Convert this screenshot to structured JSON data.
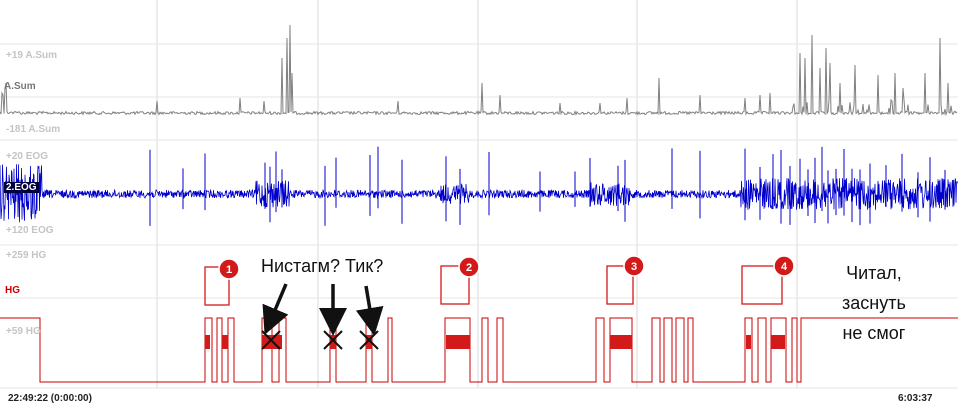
{
  "recording": {
    "start_time": "22:49:22 (0:00:00)",
    "end_time": "6:03:37"
  },
  "channels": [
    {
      "id": "asum",
      "label": "A.Sum",
      "scale_top": "+19 A.Sum",
      "scale_bottom": "-181 A.Sum",
      "color": "#808080"
    },
    {
      "id": "eog",
      "label": "2.EOG",
      "scale_top": "+20 EOG",
      "scale_bottom": "+120 EOG",
      "color": "#0000cc"
    },
    {
      "id": "hg",
      "label": "HG",
      "scale_top": "+259 HG",
      "scale_bottom": "+59 HG",
      "color": "#cc0000"
    }
  ],
  "annotations": {
    "question": "Нистагм? Тик?",
    "note_lines": [
      "Читал,",
      "заснуть",
      "не смог"
    ],
    "markers": [
      "1",
      "2",
      "3",
      "4"
    ]
  },
  "colors": {
    "grid": "#d8d8d8",
    "marker_fill": "#d21a1a"
  }
}
